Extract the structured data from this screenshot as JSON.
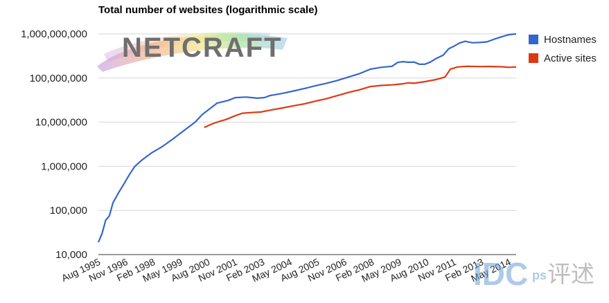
{
  "chart_data": {
    "type": "line",
    "title": "Total number of websites (logarithmic scale)",
    "xlabel": "",
    "ylabel": "",
    "yscale": "log",
    "ylim": [
      10000,
      1000000000
    ],
    "yticks": [
      10000,
      100000,
      1000000,
      10000000,
      100000000,
      1000000000
    ],
    "ytick_labels": [
      "10,000",
      "100,000",
      "1,000,000",
      "10,000,000",
      "100,000,000",
      "1,000,000,000"
    ],
    "xlim": [
      "1995-08",
      "2014-09"
    ],
    "xtick_labels": [
      {
        "date": "1995-08",
        "label": "Aug 1995"
      },
      {
        "date": "1996-11",
        "label": "Nov 1996"
      },
      {
        "date": "1998-02",
        "label": "Feb 1998"
      },
      {
        "date": "1999-05",
        "label": "May 1999"
      },
      {
        "date": "2000-08",
        "label": "Aug 2000"
      },
      {
        "date": "2001-11",
        "label": "Nov 2001"
      },
      {
        "date": "2003-02",
        "label": "Feb 2003"
      },
      {
        "date": "2004-05",
        "label": "May 2004"
      },
      {
        "date": "2005-08",
        "label": "Aug 2005"
      },
      {
        "date": "2006-11",
        "label": "Nov 2006"
      },
      {
        "date": "2008-02",
        "label": "Feb 2008"
      },
      {
        "date": "2009-05",
        "label": "May 2009"
      },
      {
        "date": "2010-08",
        "label": "Aug 2010"
      },
      {
        "date": "2011-11",
        "label": "Nov 2011"
      },
      {
        "date": "2013-02",
        "label": "Feb 2013"
      },
      {
        "date": "2014-05",
        "label": "May 2014"
      }
    ],
    "grid": true,
    "legend_position": "right",
    "series": [
      {
        "name": "Hostnames",
        "color": "#3366cc",
        "points": [
          [
            "1995-08",
            19000
          ],
          [
            "1995-10",
            30000
          ],
          [
            "1995-12",
            60000
          ],
          [
            "1996-02",
            75000
          ],
          [
            "1996-04",
            150000
          ],
          [
            "1996-07",
            250000
          ],
          [
            "1996-10",
            400000
          ],
          [
            "1997-01",
            650000
          ],
          [
            "1997-04",
            1000000
          ],
          [
            "1997-08",
            1400000
          ],
          [
            "1998-01",
            2000000
          ],
          [
            "1998-07",
            2800000
          ],
          [
            "1999-01",
            4200000
          ],
          [
            "1999-07",
            6500000
          ],
          [
            "2000-01",
            10000000
          ],
          [
            "2000-05",
            15000000
          ],
          [
            "2000-09",
            20000000
          ],
          [
            "2001-01",
            27000000
          ],
          [
            "2001-07",
            31000000
          ],
          [
            "2001-11",
            36000000
          ],
          [
            "2002-05",
            37000000
          ],
          [
            "2002-11",
            35000000
          ],
          [
            "2003-03",
            36000000
          ],
          [
            "2003-06",
            40000000
          ],
          [
            "2004-01",
            45000000
          ],
          [
            "2004-07",
            51000000
          ],
          [
            "2005-01",
            58000000
          ],
          [
            "2005-07",
            67000000
          ],
          [
            "2006-01",
            76000000
          ],
          [
            "2006-07",
            88000000
          ],
          [
            "2007-01",
            105000000
          ],
          [
            "2007-07",
            125000000
          ],
          [
            "2008-01",
            158000000
          ],
          [
            "2008-07",
            175000000
          ],
          [
            "2009-01",
            185000000
          ],
          [
            "2009-04",
            225000000
          ],
          [
            "2009-07",
            235000000
          ],
          [
            "2009-10",
            228000000
          ],
          [
            "2010-01",
            230000000
          ],
          [
            "2010-04",
            205000000
          ],
          [
            "2010-07",
            206000000
          ],
          [
            "2010-10",
            230000000
          ],
          [
            "2011-01",
            275000000
          ],
          [
            "2011-05",
            330000000
          ],
          [
            "2011-08",
            460000000
          ],
          [
            "2011-11",
            530000000
          ],
          [
            "2012-02",
            620000000
          ],
          [
            "2012-05",
            680000000
          ],
          [
            "2012-09",
            630000000
          ],
          [
            "2013-01",
            640000000
          ],
          [
            "2013-05",
            660000000
          ],
          [
            "2013-09",
            760000000
          ],
          [
            "2014-01",
            860000000
          ],
          [
            "2014-05",
            960000000
          ],
          [
            "2014-09",
            1000000000
          ]
        ]
      },
      {
        "name": "Active sites",
        "color": "#dc3912",
        "points": [
          [
            "2000-06",
            7600000
          ],
          [
            "2000-10",
            9000000
          ],
          [
            "2001-01",
            10000000
          ],
          [
            "2001-06",
            11500000
          ],
          [
            "2001-11",
            14000000
          ],
          [
            "2002-03",
            16000000
          ],
          [
            "2002-08",
            16500000
          ],
          [
            "2003-01",
            17000000
          ],
          [
            "2003-07",
            19000000
          ],
          [
            "2004-01",
            21000000
          ],
          [
            "2004-07",
            23500000
          ],
          [
            "2005-01",
            26000000
          ],
          [
            "2005-07",
            30000000
          ],
          [
            "2006-01",
            34000000
          ],
          [
            "2006-07",
            40000000
          ],
          [
            "2007-01",
            47000000
          ],
          [
            "2007-07",
            54000000
          ],
          [
            "2008-01",
            64000000
          ],
          [
            "2008-07",
            68000000
          ],
          [
            "2009-01",
            70000000
          ],
          [
            "2009-07",
            74000000
          ],
          [
            "2009-10",
            78000000
          ],
          [
            "2010-01",
            76000000
          ],
          [
            "2010-07",
            83000000
          ],
          [
            "2011-01",
            92000000
          ],
          [
            "2011-06",
            105000000
          ],
          [
            "2011-09",
            160000000
          ],
          [
            "2012-01",
            178000000
          ],
          [
            "2012-06",
            185000000
          ],
          [
            "2013-01",
            182000000
          ],
          [
            "2013-07",
            183000000
          ],
          [
            "2014-01",
            180000000
          ],
          [
            "2014-05",
            175000000
          ],
          [
            "2014-09",
            178000000
          ]
        ]
      }
    ]
  },
  "logo": {
    "text": "NETCRAFT"
  },
  "watermark": {
    "text": "IDC",
    "sub": "ps",
    "glyphs": "评述"
  }
}
